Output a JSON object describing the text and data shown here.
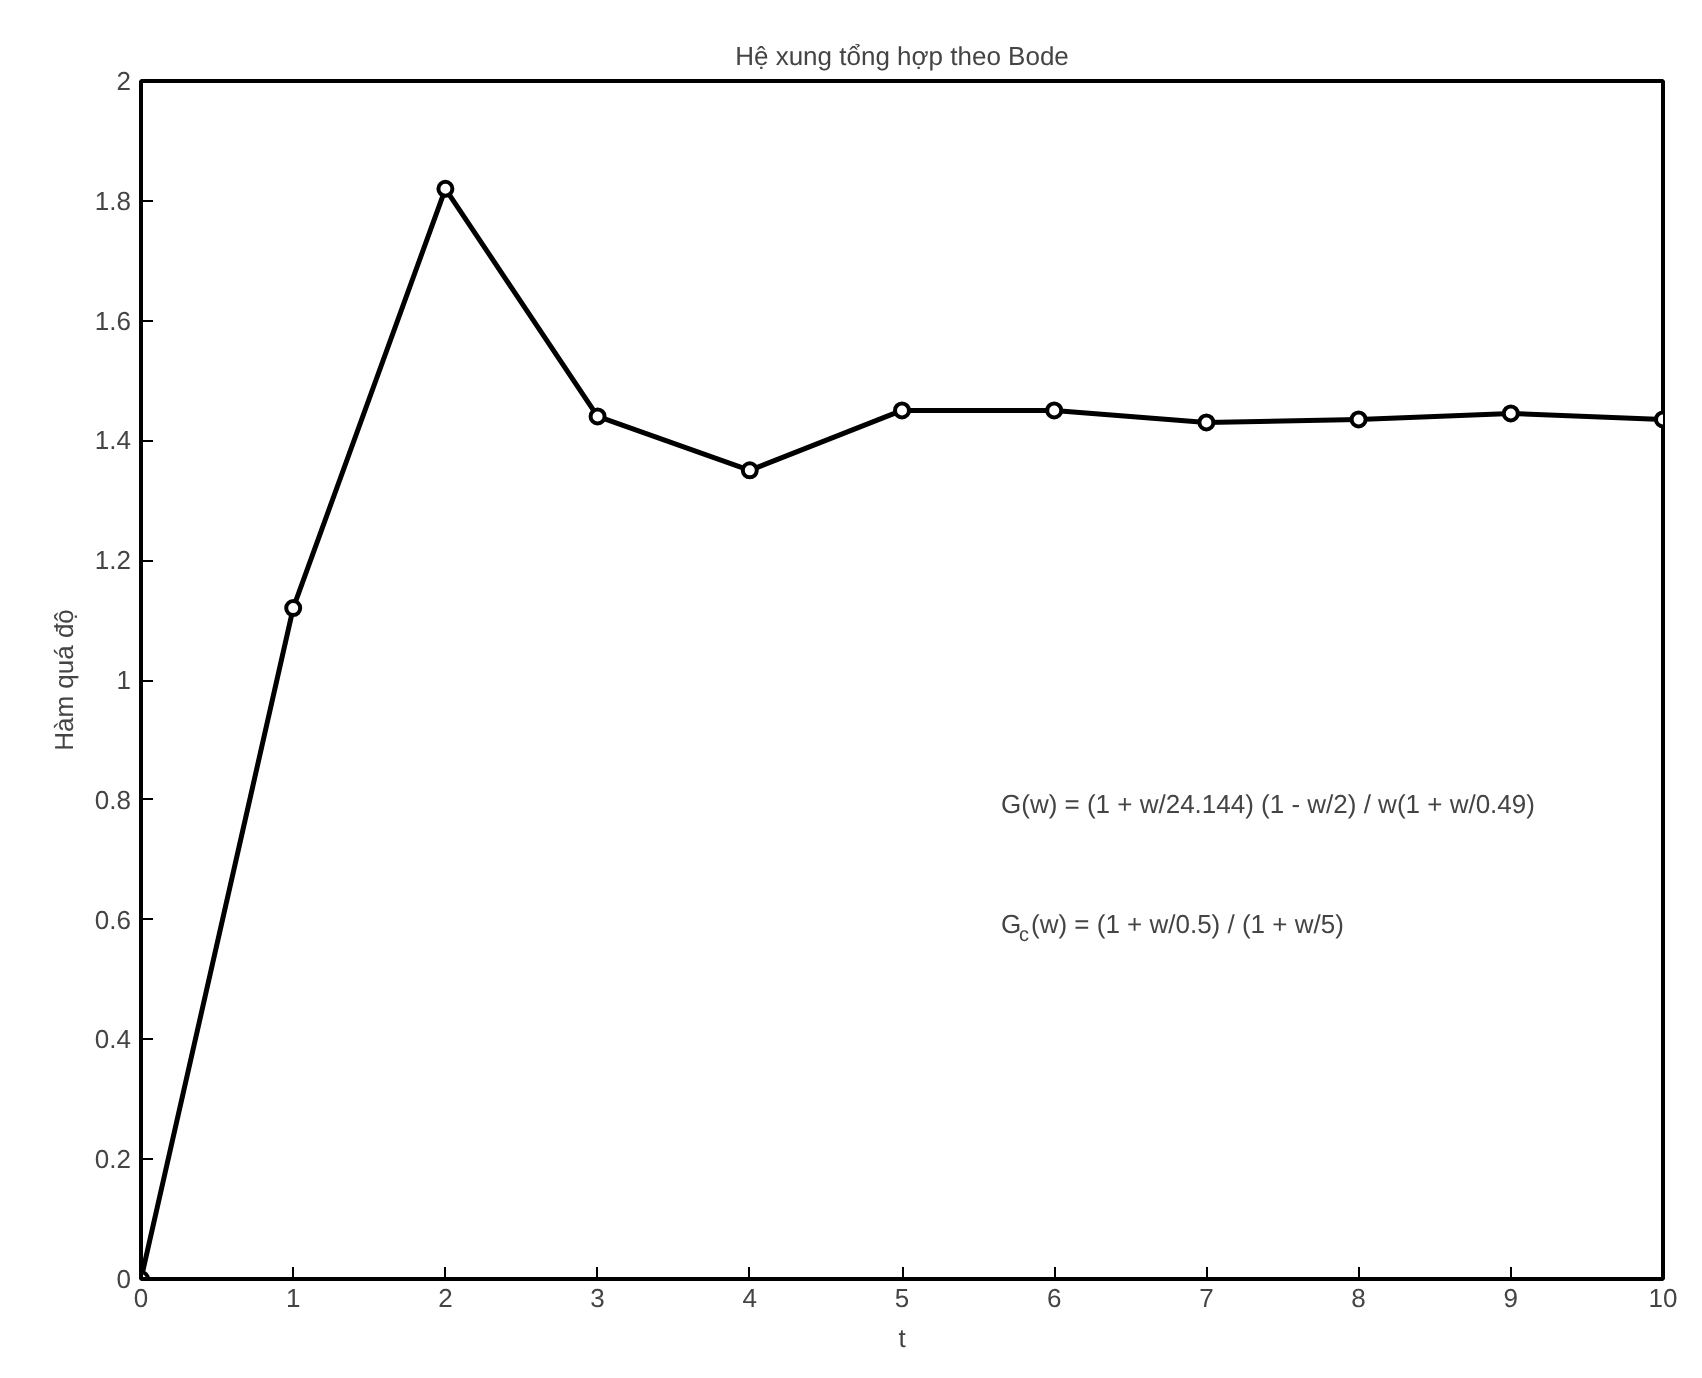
{
  "chart_data": {
    "type": "line",
    "title": "Hệ xung tổng hợp theo Bode",
    "xlabel": "t",
    "ylabel": "Hàm quá độ",
    "x": [
      0,
      1,
      2,
      3,
      4,
      5,
      6,
      7,
      8,
      9,
      10
    ],
    "series": [
      {
        "color": "#000000",
        "values": [
          0,
          1.12,
          1.82,
          1.44,
          1.35,
          1.45,
          1.45,
          1.43,
          1.435,
          1.445,
          1.435
        ]
      }
    ],
    "xlim": [
      0,
      10
    ],
    "xticks": [
      0,
      1,
      2,
      3,
      4,
      5,
      6,
      7,
      8,
      9,
      10
    ],
    "ylim": [
      0,
      2
    ],
    "yticks": [
      0,
      0.2,
      0.4,
      0.6,
      0.8,
      1,
      1.2,
      1.4,
      1.6,
      1.8,
      2
    ],
    "grid": false,
    "marker": "circle",
    "line_style": "solid",
    "annotations": [
      "G(w) = (1 + w/24.144) (1 - w/2) / w(1 + w/0.49)",
      "G$_{c}$(w) = (1 + w/0.5) / (1 + w/5)"
    ]
  }
}
